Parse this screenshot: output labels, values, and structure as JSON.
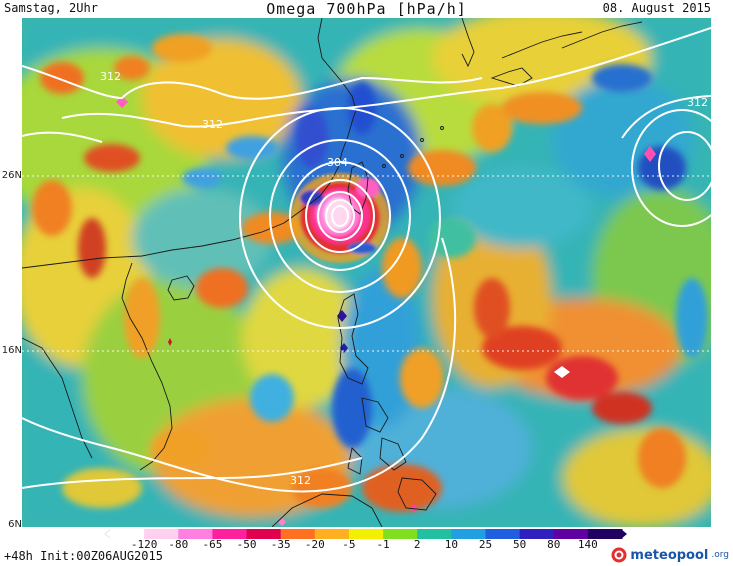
{
  "header": {
    "left": "Samstag, 2Uhr",
    "title": "Omega 700hPa [hPa/h]",
    "date": "08. August 2015"
  },
  "footer": {
    "left": "+48h Init:00Z06AUG2015",
    "brand_name": "meteopool",
    "brand_tld": ".org"
  },
  "map": {
    "lat_labels": [
      "26N",
      "16N",
      "6N"
    ],
    "contour_labels": [
      "312",
      "312",
      "304",
      "312",
      "312"
    ]
  },
  "colorbar": {
    "labels": [
      "-120",
      "-80",
      "-65",
      "-50",
      "-35",
      "-20",
      "-5",
      "-1",
      "2",
      "10",
      "25",
      "50",
      "80",
      "140"
    ],
    "colors": [
      "#ffffff",
      "#ffd0f0",
      "#ff80e0",
      "#ff20a0",
      "#e0004e",
      "#ff7020",
      "#ffb020",
      "#f0f000",
      "#80e020",
      "#20c0a0",
      "#20a0e0",
      "#2060e0",
      "#3020c0",
      "#6000a0",
      "#200060"
    ]
  },
  "colors": {
    "contour": "#ffffff",
    "coast": "#1a1a1a",
    "brand": "#1a56a8"
  }
}
